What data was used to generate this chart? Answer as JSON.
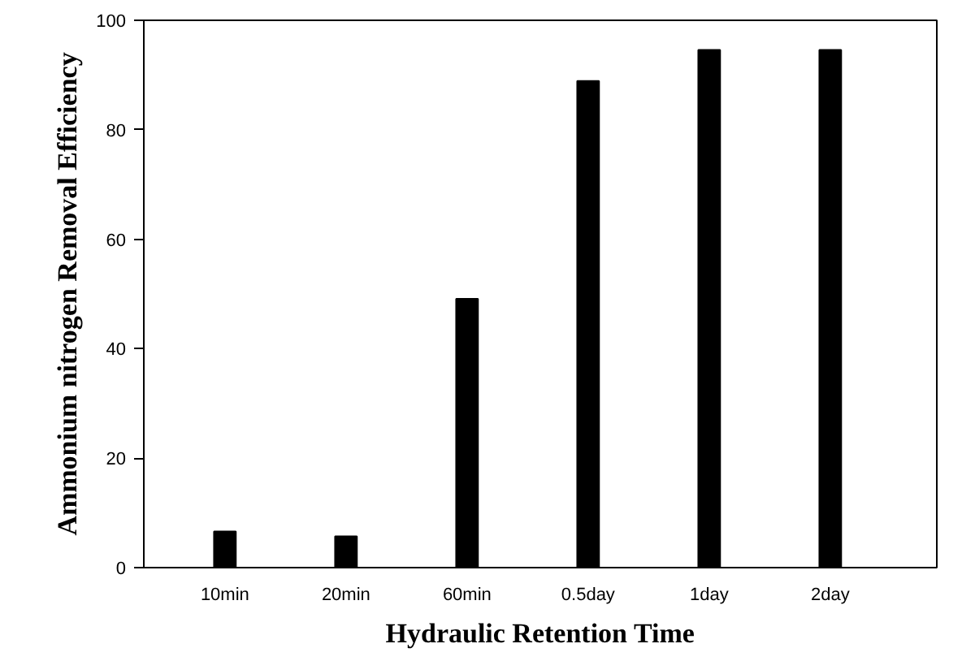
{
  "chart_data": {
    "type": "bar",
    "xlabel": "Hydraulic Retention Time",
    "ylabel": "Ammonium nitrogen Removal Efficiency",
    "categories": [
      "10min",
      "20min",
      "60min",
      "0.5day",
      "1day",
      "2day"
    ],
    "values": [
      6.6,
      5.7,
      49.1,
      88.9,
      94.6,
      94.6
    ],
    "color": "#000000",
    "ylim": [
      0,
      100
    ],
    "yticks": [
      0,
      20,
      40,
      60,
      80,
      100
    ],
    "grid": false
  }
}
